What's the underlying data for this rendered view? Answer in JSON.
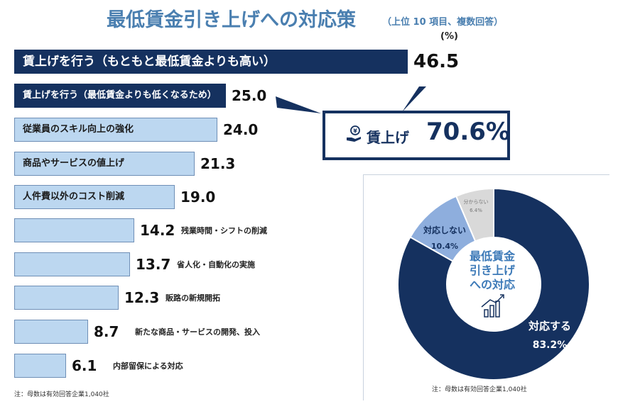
{
  "title": "最低賃金引き上げへの対応策",
  "subtitle": "（上位 10 項目、複数回答）",
  "unit": "(%)",
  "callout": {
    "label": "賃上げ",
    "value": "70.6%"
  },
  "chart_data": [
    {
      "type": "bar",
      "orientation": "horizontal",
      "title": "最低賃金引き上げへの対応策",
      "subtitle": "（上位 10 項目、複数回答）",
      "unit": "(%)",
      "categories": [
        "賃上げを行う（もともと最低賃金よりも高い）",
        "賃上げを行う（最低賃金よりも低くなるため）",
        "従業員のスキル向上の強化",
        "商品やサービスの値上げ",
        "人件費以外のコスト削減",
        "残業時間・シフトの削減",
        "省人化・自動化の実施",
        "販路の新規開拓",
        "新たな商品・サービスの開発、投入",
        "内部留保による対応"
      ],
      "values": [
        46.5,
        25.0,
        24.0,
        21.3,
        19.0,
        14.2,
        13.7,
        12.3,
        8.7,
        6.1
      ],
      "value_labels": [
        "46.5",
        "25.0",
        "24.0",
        "21.3",
        "19.0",
        "14.2",
        "13.7",
        "12.3",
        "8.7",
        "6.1"
      ],
      "note": "注：母数は有効回答企業1,040社"
    },
    {
      "type": "pie",
      "donut": true,
      "center_label": [
        "最低賃金",
        "引き上げ",
        "への対応"
      ],
      "categories": [
        "対応する",
        "対応しない",
        "分からない"
      ],
      "values": [
        83.2,
        10.4,
        6.4
      ],
      "value_labels": [
        "83.2%",
        "10.4%",
        "6.4%"
      ],
      "colors": [
        "#15315f",
        "#8eaedd",
        "#d9d9d9"
      ],
      "note": "注：母数は有効回答企業1,040社"
    }
  ]
}
